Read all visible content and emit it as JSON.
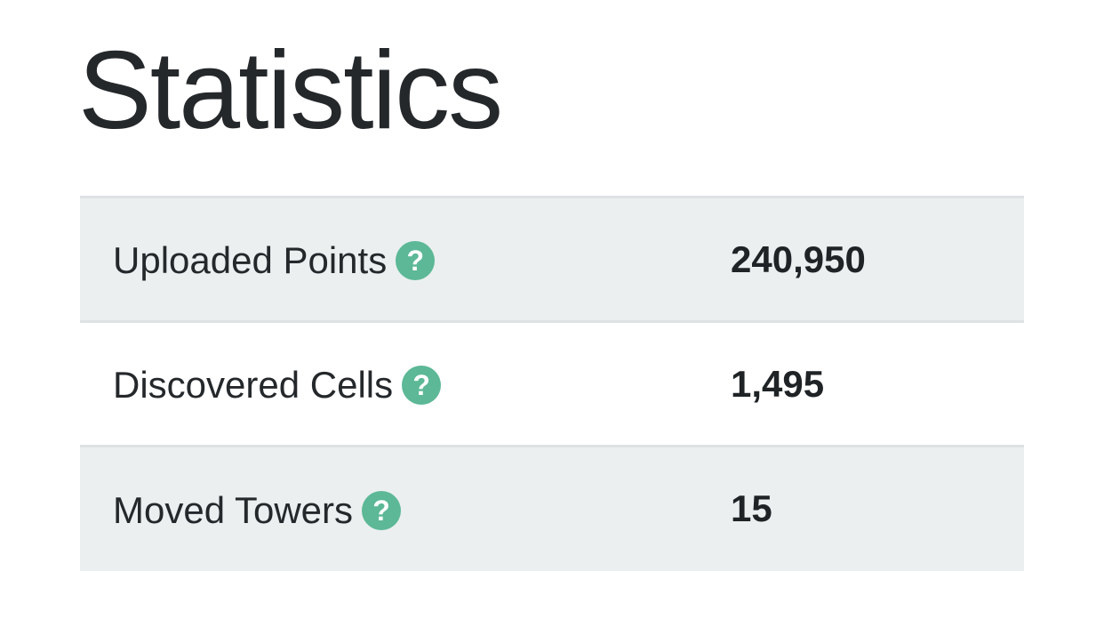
{
  "page": {
    "title": "Statistics"
  },
  "stats": {
    "rows": [
      {
        "label": "Uploaded Points",
        "value": "240,950",
        "icon": "question-icon"
      },
      {
        "label": "Discovered Cells",
        "value": "1,495",
        "icon": "question-icon"
      },
      {
        "label": "Moved Towers",
        "value": "15",
        "icon": "question-icon"
      }
    ]
  },
  "colors": {
    "accent": "#5cb896",
    "stripe": "#ebeff0",
    "border": "#dee2e4",
    "text": "#25282b"
  }
}
